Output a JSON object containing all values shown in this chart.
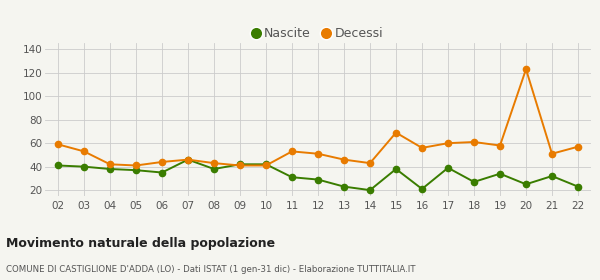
{
  "years": [
    2,
    3,
    4,
    5,
    6,
    7,
    8,
    9,
    10,
    11,
    12,
    13,
    14,
    15,
    16,
    17,
    18,
    19,
    20,
    21,
    22
  ],
  "nascite": [
    41,
    40,
    38,
    37,
    35,
    46,
    38,
    42,
    42,
    31,
    29,
    23,
    20,
    38,
    21,
    39,
    27,
    34,
    25,
    32,
    23
  ],
  "decessi": [
    59,
    53,
    42,
    41,
    44,
    46,
    43,
    41,
    41,
    53,
    51,
    46,
    43,
    69,
    56,
    60,
    61,
    58,
    123,
    51,
    57
  ],
  "nascite_color": "#3a7d00",
  "decessi_color": "#e87b00",
  "background_color": "#f5f5f0",
  "grid_color": "#cccccc",
  "title": "Movimento naturale della popolazione",
  "subtitle": "COMUNE DI CASTIGLIONE D'ADDA (LO) - Dati ISTAT (1 gen-31 dic) - Elaborazione TUTTITALIA.IT",
  "legend_nascite": "Nascite",
  "legend_decessi": "Decessi",
  "ylim": [
    15,
    145
  ],
  "yticks": [
    20,
    40,
    60,
    80,
    100,
    120,
    140
  ],
  "marker_size": 4.5,
  "linewidth": 1.4
}
